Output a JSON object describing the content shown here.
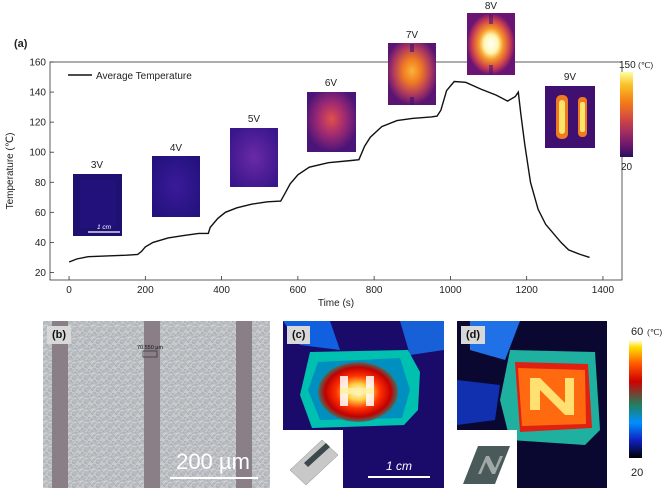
{
  "panel_a": {
    "label": "(a)",
    "legend": "Average Temperature",
    "thermal_labels": [
      "3V",
      "4V",
      "5V",
      "6V",
      "7V",
      "8V",
      "9V"
    ],
    "scale_bar": "1 cm",
    "colorbar_max": "150",
    "colorbar_unit": "(℃)",
    "colorbar_min": "20"
  },
  "panel_b": {
    "label": "(b)",
    "measure": "70.550 µm",
    "scale": "200 µm"
  },
  "panel_c": {
    "label": "(c)",
    "scale": "1 cm"
  },
  "panel_d": {
    "label": "(d)"
  },
  "colorbar_cd": {
    "max": "60",
    "unit": "(℃)",
    "min": "20"
  },
  "chart_data": {
    "type": "line",
    "title": "",
    "xlabel": "Time (s)",
    "ylabel": "Temperature (℃)",
    "xlim": [
      -50,
      1450
    ],
    "ylim": [
      15,
      160
    ],
    "xticks": [
      0,
      200,
      400,
      600,
      800,
      1000,
      1200,
      1400
    ],
    "yticks": [
      20,
      40,
      60,
      80,
      100,
      120,
      140,
      160
    ],
    "series": [
      {
        "name": "Average Temperature",
        "x": [
          0,
          20,
          50,
          100,
          150,
          180,
          190,
          200,
          220,
          260,
          300,
          340,
          365,
          370,
          390,
          410,
          440,
          480,
          520,
          555,
          565,
          580,
          600,
          630,
          680,
          740,
          760,
          775,
          790,
          820,
          860,
          900,
          950,
          965,
          975,
          990,
          1010,
          1040,
          1080,
          1120,
          1150,
          1170,
          1178,
          1185,
          1195,
          1210,
          1230,
          1250,
          1270,
          1290,
          1310,
          1340,
          1365
        ],
        "y": [
          27,
          29,
          30.5,
          31,
          31.5,
          32,
          34,
          37,
          40,
          43,
          44.5,
          46,
          46,
          50,
          56,
          60,
          63,
          65.5,
          67,
          67.5,
          72,
          79,
          85,
          90,
          93,
          94.5,
          95,
          104,
          110,
          117,
          121,
          122.5,
          123.5,
          124,
          128,
          141,
          147,
          146.5,
          142,
          138,
          134,
          137,
          140,
          125,
          105,
          80,
          62,
          52,
          46,
          40,
          35,
          32,
          30
        ]
      }
    ]
  }
}
